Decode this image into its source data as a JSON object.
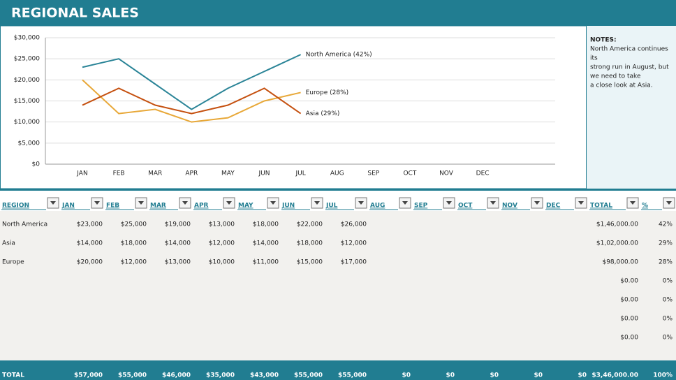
{
  "header": {
    "title": "REGIONAL SALES"
  },
  "chart_data": {
    "type": "line",
    "categories": [
      "JAN",
      "FEB",
      "MAR",
      "APR",
      "MAY",
      "JUN",
      "JUL",
      "AUG",
      "SEP",
      "OCT",
      "NOV",
      "DEC"
    ],
    "series": [
      {
        "name": "North America (42%)",
        "color": "#2a8497",
        "values": [
          23000,
          25000,
          19000,
          13000,
          18000,
          22000,
          26000,
          null,
          null,
          null,
          null,
          null
        ]
      },
      {
        "name": "Europe (28%)",
        "color": "#e8a838",
        "values": [
          20000,
          12000,
          13000,
          10000,
          11000,
          15000,
          17000,
          null,
          null,
          null,
          null,
          null
        ]
      },
      {
        "name": "Asia (29%)",
        "color": "#c5500f",
        "values": [
          14000,
          18000,
          14000,
          12000,
          14000,
          18000,
          12000,
          null,
          null,
          null,
          null,
          null
        ]
      }
    ],
    "ylim": [
      0,
      30000
    ],
    "yticks": [
      {
        "value": 0,
        "label": "$0"
      },
      {
        "value": 5000,
        "label": "$5,000"
      },
      {
        "value": 10000,
        "label": "$10,000"
      },
      {
        "value": 15000,
        "label": "$15,000"
      },
      {
        "value": 20000,
        "label": "$20,000"
      },
      {
        "value": 25000,
        "label": "$25,000"
      },
      {
        "value": 30000,
        "label": "$30,000"
      }
    ],
    "grid": true
  },
  "notes": {
    "title": "NOTES:",
    "lines": [
      "North America continues",
      "its",
      "strong run in August, but",
      "we need to take",
      "a close look at Asia."
    ]
  },
  "table": {
    "headers": [
      "REGION",
      "JAN",
      "FEB",
      "MAR",
      "APR",
      "MAY",
      "JUN",
      "JUL",
      "AUG",
      "SEP",
      "OCT",
      "NOV",
      "DEC",
      "TOTAL",
      "%"
    ],
    "rows": [
      {
        "region": "North America",
        "months": [
          "$23,000",
          "$25,000",
          "$19,000",
          "$13,000",
          "$18,000",
          "$22,000",
          "$26,000"
        ],
        "total": "$1,46,000.00",
        "pct": "42%"
      },
      {
        "region": "Asia",
        "months": [
          "$14,000",
          "$18,000",
          "$14,000",
          "$12,000",
          "$14,000",
          "$18,000",
          "$12,000"
        ],
        "total": "$1,02,000.00",
        "pct": "29%"
      },
      {
        "region": "Europe",
        "months": [
          "$20,000",
          "$12,000",
          "$13,000",
          "$10,000",
          "$11,000",
          "$15,000",
          "$17,000"
        ],
        "total": "$98,000.00",
        "pct": "28%"
      },
      {
        "total": "$0.00",
        "pct": "0%"
      },
      {
        "total": "$0.00",
        "pct": "0%"
      },
      {
        "total": "$0.00",
        "pct": "0%"
      },
      {
        "total": "$0.00",
        "pct": "0%"
      }
    ],
    "totals": {
      "region": "TOTAL",
      "months": [
        "$57,000",
        "$55,000",
        "$46,000",
        "$35,000",
        "$43,000",
        "$55,000",
        "$55,000",
        "$0",
        "$0",
        "$0",
        "$0",
        "$0"
      ],
      "total": "$3,46,000.00",
      "pct": "100%"
    }
  }
}
